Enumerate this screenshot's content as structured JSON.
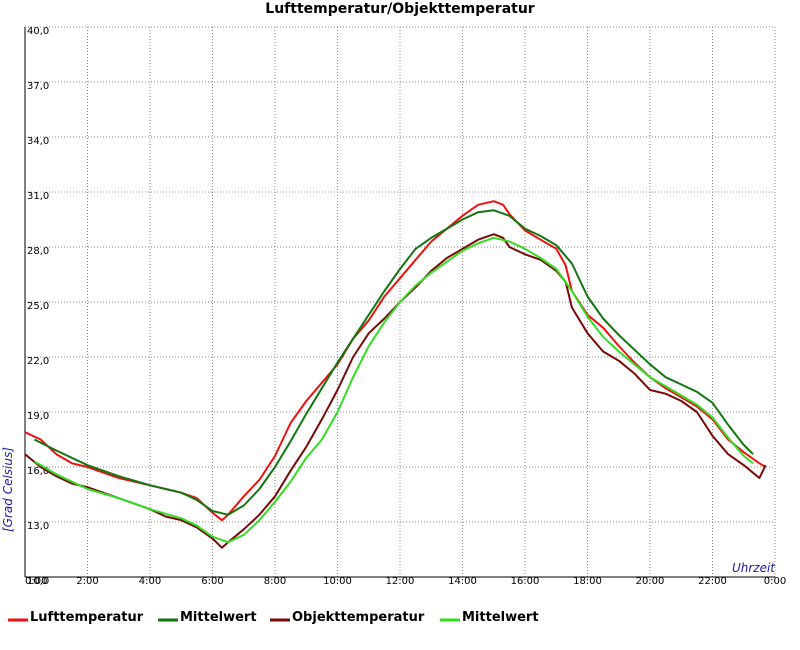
{
  "chart_data": {
    "type": "line",
    "title": "Lufttemperatur/Objekttemperatur",
    "xlabel": "Uhrzeit",
    "ylabel": "[Grad Celsius]",
    "xlim": [
      0,
      24
    ],
    "ylim": [
      10,
      40
    ],
    "x_ticks": [
      "0:00",
      "2:00",
      "4:00",
      "6:00",
      "8:00",
      "10:00",
      "12:00",
      "14:00",
      "16:00",
      "18:00",
      "20:00",
      "22:00",
      "0:00"
    ],
    "y_ticks": [
      "10,0",
      "13,0",
      "16,0",
      "19,0",
      "22,0",
      "25,0",
      "28,0",
      "31,0",
      "34,0",
      "37,0",
      "40,0"
    ],
    "grid": true,
    "legend_position": "bottom",
    "series": [
      {
        "name": "Lufttemperatur",
        "color": "#ee1111",
        "x": [
          0,
          0.5,
          1,
          1.5,
          2,
          2.5,
          3,
          3.5,
          4,
          4.5,
          5,
          5.5,
          6,
          6.3,
          6.5,
          7,
          7.5,
          8,
          8.5,
          9,
          9.5,
          10,
          10.5,
          11,
          11.5,
          12,
          12.5,
          13,
          13.5,
          14,
          14.5,
          15,
          15.3,
          15.5,
          16,
          16.5,
          17,
          17.3,
          17.5,
          18,
          18.5,
          19,
          19.5,
          20,
          20.5,
          21,
          21.5,
          22,
          22.5,
          23,
          23.5,
          23.7
        ],
        "y": [
          17.9,
          17.5,
          16.7,
          16.2,
          16.0,
          15.7,
          15.4,
          15.2,
          15.0,
          14.8,
          14.6,
          14.3,
          13.5,
          13.1,
          13.4,
          14.4,
          15.3,
          16.6,
          18.4,
          19.6,
          20.6,
          21.6,
          23.0,
          24.0,
          25.3,
          26.3,
          27.3,
          28.3,
          29.0,
          29.7,
          30.3,
          30.5,
          30.3,
          29.8,
          28.9,
          28.4,
          27.9,
          27.0,
          25.6,
          24.3,
          23.6,
          22.6,
          21.7,
          20.9,
          20.3,
          19.8,
          19.3,
          18.6,
          17.5,
          16.8,
          16.2,
          16.0
        ]
      },
      {
        "name": "Mittelwert",
        "color": "#117711",
        "x": [
          0.3,
          1,
          2,
          3,
          4,
          5,
          5.5,
          6,
          6.5,
          7,
          7.5,
          8,
          8.5,
          9,
          9.5,
          10,
          10.5,
          11,
          11.5,
          12,
          12.5,
          13,
          13.5,
          14,
          14.5,
          15,
          15.5,
          16,
          16.5,
          17,
          17.5,
          18,
          18.5,
          19,
          19.5,
          20,
          20.5,
          21,
          21.5,
          22,
          22.5,
          23,
          23.3
        ],
        "y": [
          17.5,
          16.9,
          16.1,
          15.5,
          15.0,
          14.6,
          14.2,
          13.6,
          13.4,
          13.9,
          14.8,
          16.0,
          17.4,
          18.9,
          20.3,
          21.7,
          23.0,
          24.3,
          25.6,
          26.8,
          27.9,
          28.5,
          29.0,
          29.5,
          29.9,
          30.0,
          29.7,
          29.0,
          28.6,
          28.1,
          27.1,
          25.3,
          24.1,
          23.2,
          22.4,
          21.6,
          20.9,
          20.5,
          20.1,
          19.5,
          18.3,
          17.2,
          16.7
        ]
      },
      {
        "name": "Objekttemperatur",
        "color": "#7a0a0a",
        "x": [
          0,
          0.5,
          1,
          1.5,
          2,
          2.5,
          3,
          3.5,
          4,
          4.5,
          5,
          5.5,
          6,
          6.3,
          6.5,
          7,
          7.5,
          8,
          8.5,
          9,
          9.5,
          10,
          10.5,
          11,
          11.5,
          12,
          12.5,
          13,
          13.5,
          14,
          14.5,
          15,
          15.3,
          15.5,
          16,
          16.5,
          17,
          17.3,
          17.5,
          18,
          18.5,
          19,
          19.5,
          20,
          20.5,
          21,
          21.5,
          22,
          22.5,
          23,
          23.5,
          23.7
        ],
        "y": [
          16.7,
          16.0,
          15.5,
          15.1,
          14.9,
          14.6,
          14.3,
          14.0,
          13.7,
          13.3,
          13.1,
          12.7,
          12.1,
          11.6,
          11.9,
          12.6,
          13.4,
          14.4,
          15.8,
          17.1,
          18.6,
          20.2,
          22.0,
          23.3,
          24.1,
          25.0,
          25.8,
          26.7,
          27.4,
          27.9,
          28.4,
          28.7,
          28.5,
          28.0,
          27.6,
          27.3,
          26.7,
          26.1,
          24.7,
          23.3,
          22.3,
          21.8,
          21.1,
          20.2,
          20.0,
          19.6,
          19.0,
          17.7,
          16.7,
          16.1,
          15.4,
          16.1
        ]
      },
      {
        "name": "Mittelwert",
        "color": "#33dd22",
        "x": [
          0.3,
          1,
          2,
          3,
          4,
          5,
          5.5,
          6,
          6.5,
          7,
          7.5,
          8,
          8.5,
          9,
          9.5,
          10,
          10.5,
          11,
          11.5,
          12,
          12.5,
          13,
          13.5,
          14,
          14.5,
          15,
          15.5,
          16,
          16.5,
          17,
          17.5,
          18,
          18.5,
          19,
          19.5,
          20,
          20.5,
          21,
          21.5,
          22,
          22.5,
          23,
          23.3
        ],
        "y": [
          16.3,
          15.6,
          14.8,
          14.3,
          13.7,
          13.2,
          12.8,
          12.2,
          11.9,
          12.3,
          13.1,
          14.1,
          15.2,
          16.5,
          17.5,
          19.0,
          20.9,
          22.6,
          23.9,
          25.0,
          25.9,
          26.6,
          27.2,
          27.8,
          28.2,
          28.5,
          28.3,
          27.9,
          27.4,
          26.8,
          25.6,
          24.2,
          23.1,
          22.3,
          21.6,
          20.9,
          20.4,
          19.9,
          19.4,
          18.7,
          17.6,
          16.6,
          16.2
        ]
      }
    ]
  }
}
